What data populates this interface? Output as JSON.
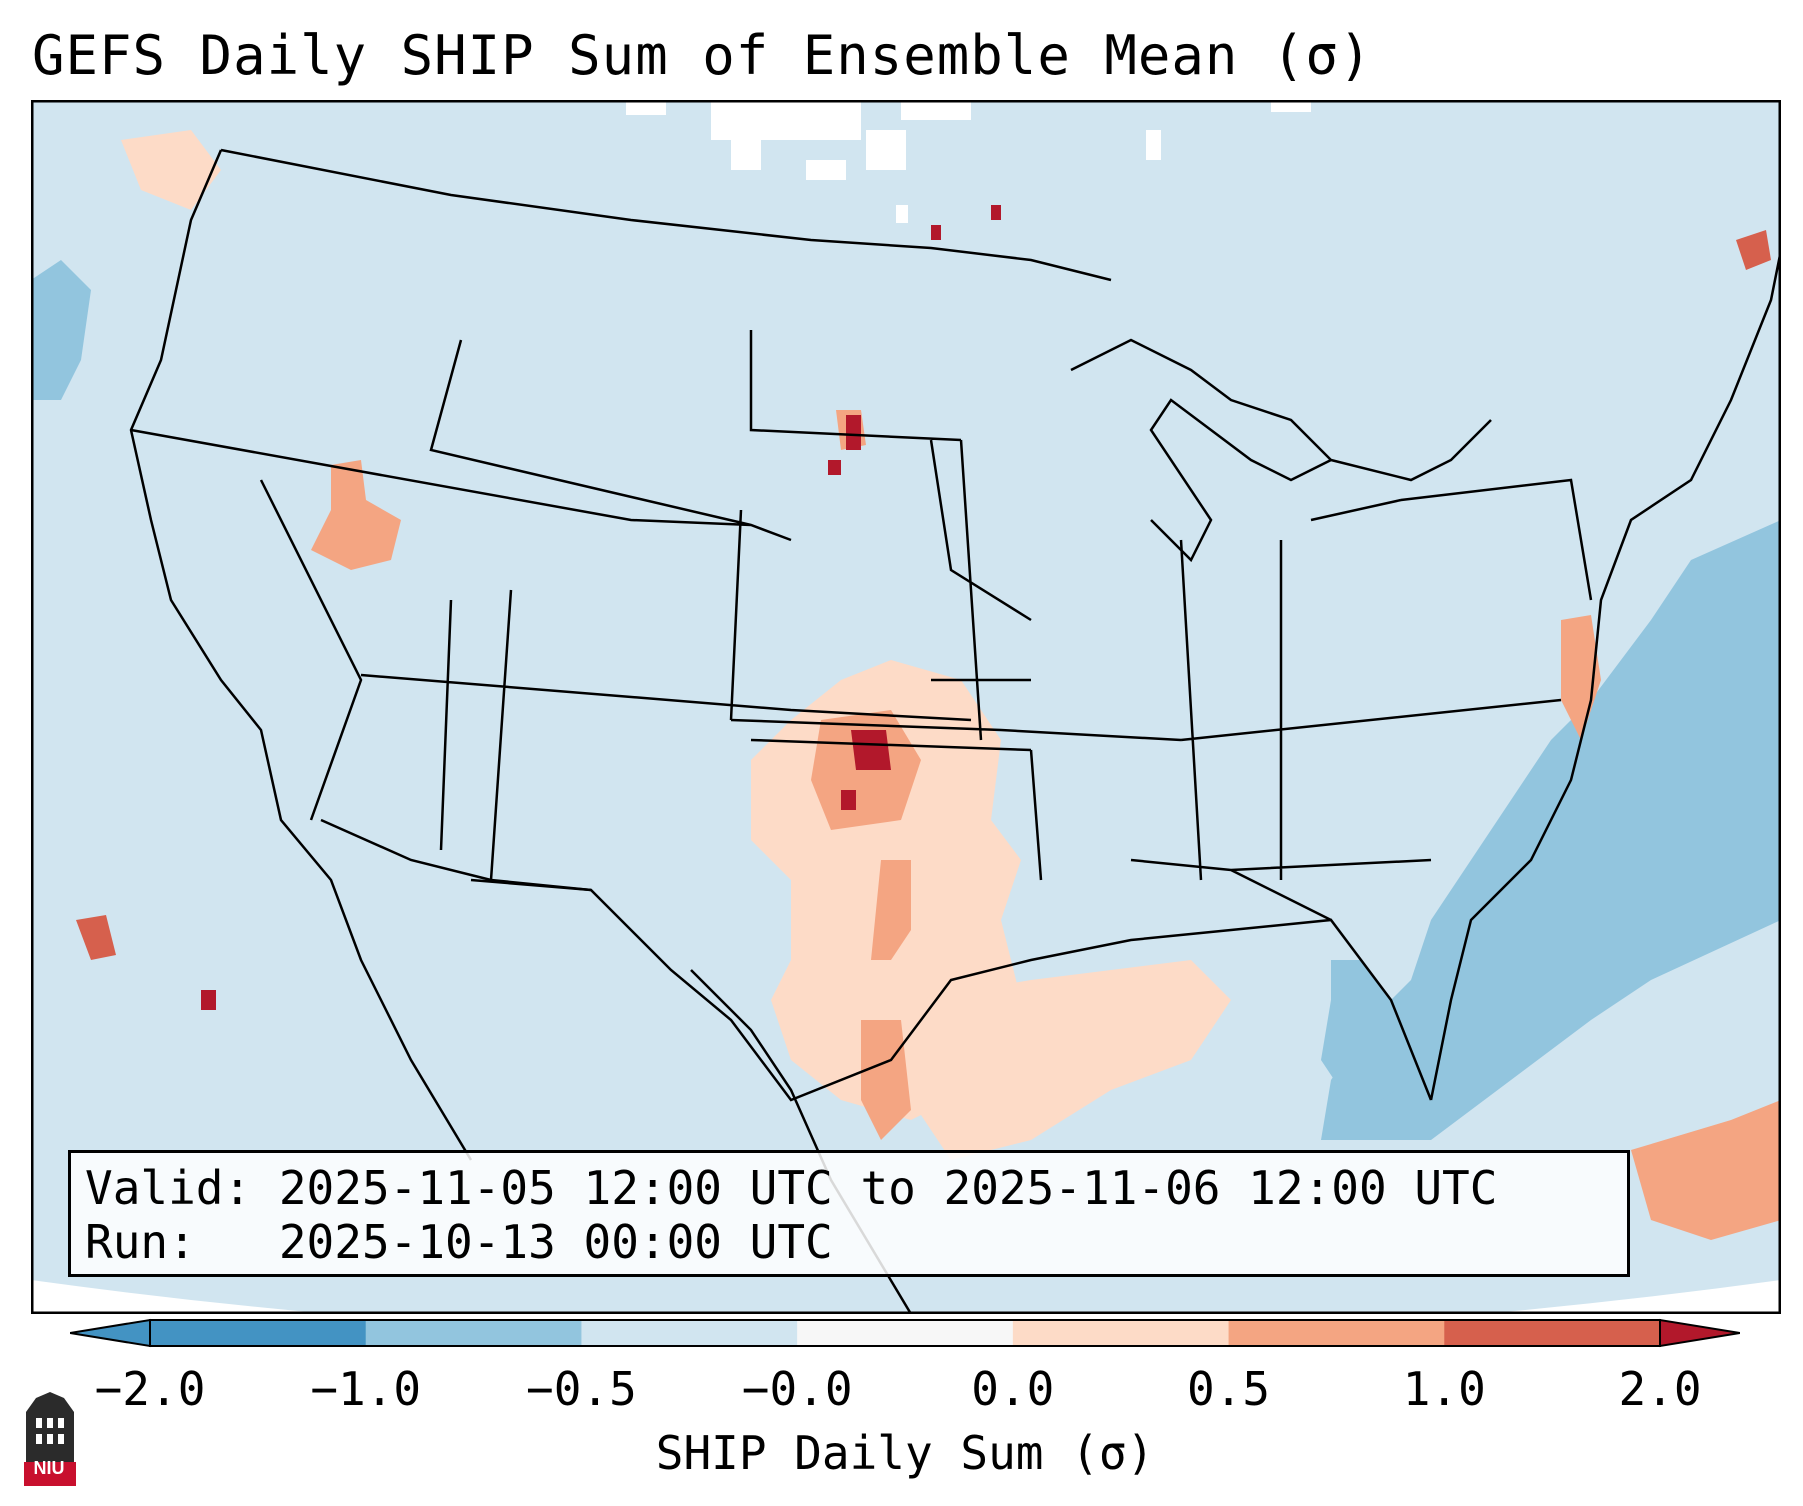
{
  "title": "GEFS Daily SHIP Sum of Ensemble Mean (σ)",
  "info": {
    "valid": "Valid: 2025-11-05 12:00 UTC to 2025-11-06 12:00 UTC",
    "run": "Run:   2025-10-13 00:00 UTC"
  },
  "colorbar": {
    "label": "SHIP Daily Sum (σ)",
    "ticks": [
      "−2.0",
      "−1.0",
      "−0.5",
      "−0.0",
      "0.0",
      "0.5",
      "1.0",
      "2.0"
    ],
    "colors": [
      "#4393c3",
      "#92c5de",
      "#d1e5f0",
      "#f7f7f7",
      "#fddbc7",
      "#f4a582",
      "#d6604d",
      "#b2182b"
    ]
  },
  "logo_text": "NIU",
  "map": {
    "background_color": "#d1e5f0",
    "ocean_color": "#92c5de",
    "extreme_low_color": "#b2182b"
  }
}
